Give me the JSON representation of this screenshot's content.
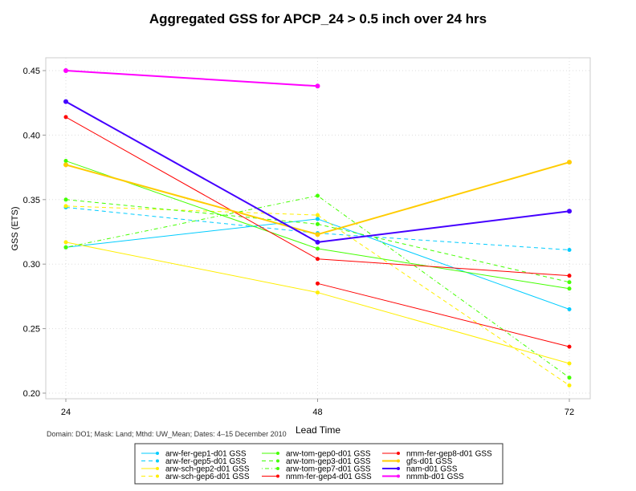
{
  "chart_data": {
    "type": "line",
    "title": "Aggregated GSS for APCP_24 > 0.5 inch over 24 hrs",
    "xlabel": "Lead Time",
    "ylabel": "GSS (ETS)",
    "footnote": "Domain: DO1; Mask: Land; Mthd: UW_Mean; Dates: 4–15 December 2010",
    "x": [
      24,
      48,
      72
    ],
    "x_ticks": [
      "24",
      "48",
      "72"
    ],
    "ylim": [
      0.2,
      0.45
    ],
    "y_ticks": [
      "0.20",
      "0.25",
      "0.30",
      "0.35",
      "0.40",
      "0.45"
    ],
    "grid": true,
    "legend_placement": "bottom",
    "series": [
      {
        "name": "arw-fer-gep1-d01 GSS",
        "color": "#00ccff",
        "dash": "solid",
        "width": 1,
        "values": [
          0.313,
          0.335,
          0.265
        ]
      },
      {
        "name": "arw-fer-gep5-d01 GSS",
        "color": "#00ccff",
        "dash": "dashed",
        "width": 1,
        "values": [
          0.344,
          0.324,
          0.311
        ]
      },
      {
        "name": "arw-sch-gep2-d01 GSS",
        "color": "#ffee00",
        "dash": "solid",
        "width": 1,
        "values": [
          0.317,
          0.278,
          0.223
        ]
      },
      {
        "name": "arw-sch-gep6-d01 GSS",
        "color": "#ffee00",
        "dash": "dashed",
        "width": 1,
        "values": [
          0.345,
          0.338,
          0.206
        ]
      },
      {
        "name": "arw-tom-gep0-d01 GSS",
        "color": "#44ff00",
        "dash": "solid",
        "width": 1,
        "values": [
          0.38,
          0.312,
          0.281
        ]
      },
      {
        "name": "arw-tom-gep3-d01 GSS",
        "color": "#44ff00",
        "dash": "dashed",
        "width": 1,
        "values": [
          0.35,
          0.331,
          0.286
        ]
      },
      {
        "name": "arw-tom-gep7-d01 GSS",
        "color": "#44ff00",
        "dash": "dotdash",
        "width": 1,
        "values": [
          0.313,
          0.353,
          0.212
        ]
      },
      {
        "name": "nmm-fer-gep4-d01 GSS",
        "color": "#ff0000",
        "dash": "solid",
        "width": 1,
        "values": [
          null,
          0.285,
          0.236
        ]
      },
      {
        "name": "nmm-fer-gep8-d01 GSS",
        "color": "#ff0000",
        "dash": "solid",
        "width": 1,
        "values": [
          0.414,
          0.304,
          0.291
        ]
      },
      {
        "name": "gfs-d01 GSS",
        "color": "#ffcc00",
        "dash": "solid",
        "width": 2,
        "values": [
          0.377,
          0.323,
          0.379
        ]
      },
      {
        "name": "nam-d01 GSS",
        "color": "#4400ff",
        "dash": "solid",
        "width": 2,
        "values": [
          0.426,
          0.317,
          0.341
        ]
      },
      {
        "name": "nmmb-d01 GSS",
        "color": "#ff00ff",
        "dash": "solid",
        "width": 2,
        "values": [
          0.45,
          0.438,
          null
        ]
      }
    ]
  }
}
